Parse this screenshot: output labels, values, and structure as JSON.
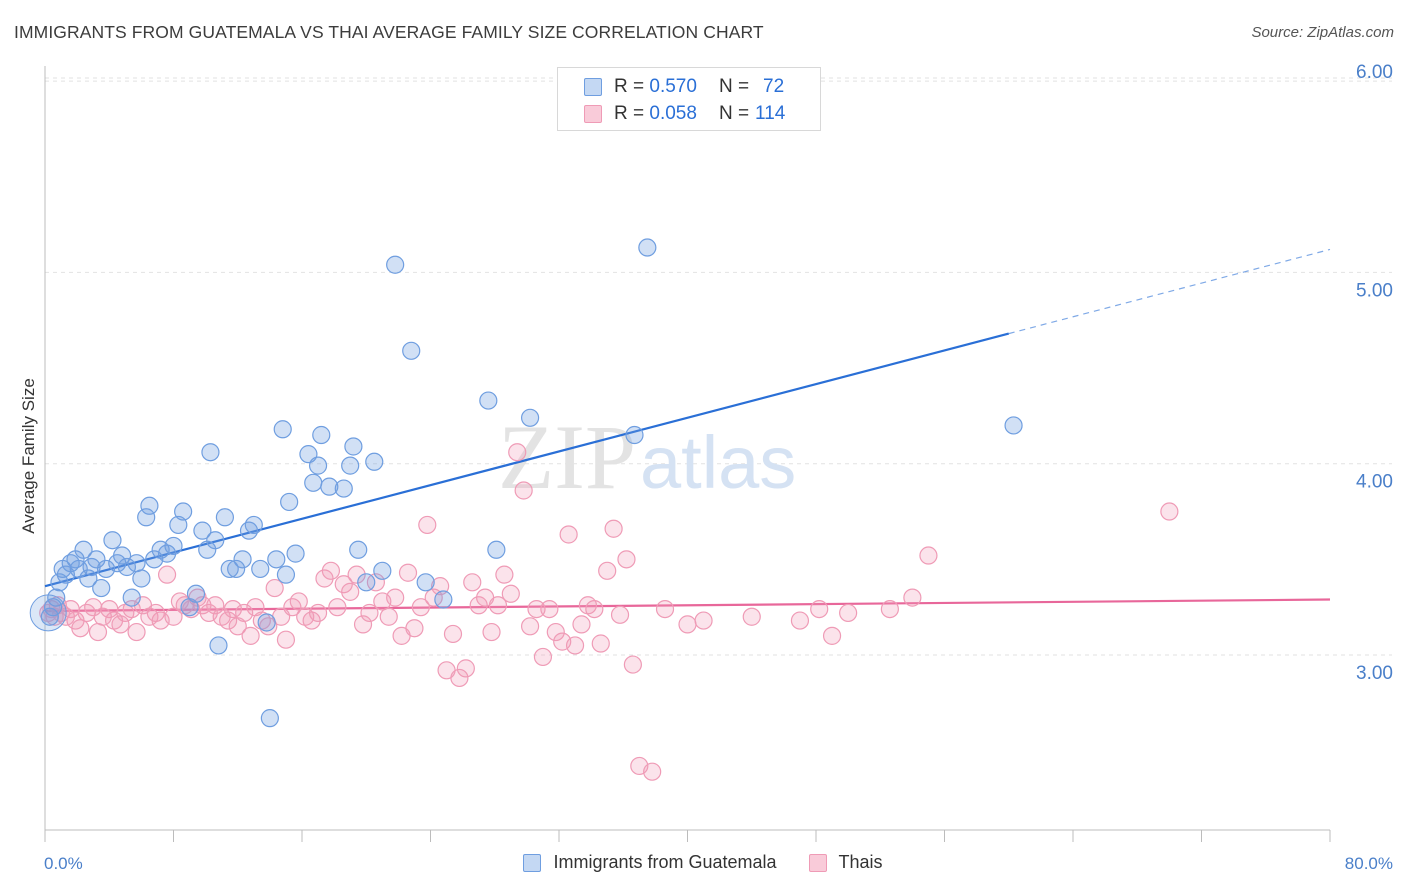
{
  "title": "IMMIGRANTS FROM GUATEMALA VS THAI AVERAGE FAMILY SIZE CORRELATION CHART",
  "source": "Source: ZipAtlas.com",
  "watermark": {
    "zip": "ZIP",
    "atlas": "atlas"
  },
  "legend": {
    "rows": [
      {
        "r_label": "R =",
        "r_value": "0.570",
        "n_label": "N =",
        "n_value": "72"
      },
      {
        "r_label": "R =",
        "r_value": "0.058",
        "n_label": "N =",
        "n_value": "114"
      }
    ]
  },
  "bottom_legend": [
    "Immigrants from Guatemala",
    "Thais"
  ],
  "chart_data": {
    "type": "scatter",
    "title": "IMMIGRANTS FROM GUATEMALA VS THAI AVERAGE FAMILY SIZE CORRELATION CHART",
    "xlabel": "",
    "ylabel": "Average Family Size",
    "xlim": [
      0,
      80
    ],
    "ylim": [
      2.1,
      6.1
    ],
    "x_tick_labels": [
      "0.0%",
      "80.0%"
    ],
    "y_ticks": [
      3.0,
      4.0,
      5.0,
      6.0
    ],
    "y_tick_labels": [
      "3.00",
      "4.00",
      "5.00",
      "6.00"
    ],
    "grid": "horizontal dashed",
    "legend_position": "top-center",
    "colors": {
      "guatemala": "#6f9ee0",
      "thais": "#ef9bb6",
      "guatemala_line": "#2a6fd6",
      "thais_line": "#e8679a"
    },
    "series": [
      {
        "name": "Immigrants from Guatemala",
        "R": 0.57,
        "N": 72,
        "trend": {
          "x0": 0,
          "y0": 3.36,
          "x1": 60,
          "y1": 4.68,
          "dashed_to": [
            80,
            5.12
          ]
        },
        "points": [
          [
            0.3,
            3.2
          ],
          [
            0.5,
            3.25
          ],
          [
            0.7,
            3.3
          ],
          [
            0.9,
            3.38
          ],
          [
            1.1,
            3.45
          ],
          [
            1.3,
            3.42
          ],
          [
            1.6,
            3.48
          ],
          [
            1.9,
            3.5
          ],
          [
            2.1,
            3.45
          ],
          [
            2.4,
            3.55
          ],
          [
            2.7,
            3.4
          ],
          [
            2.9,
            3.46
          ],
          [
            3.2,
            3.5
          ],
          [
            3.5,
            3.35
          ],
          [
            3.8,
            3.45
          ],
          [
            4.2,
            3.6
          ],
          [
            4.5,
            3.48
          ],
          [
            4.8,
            3.52
          ],
          [
            5.1,
            3.46
          ],
          [
            5.4,
            3.3
          ],
          [
            5.7,
            3.48
          ],
          [
            6.0,
            3.4
          ],
          [
            6.3,
            3.72
          ],
          [
            6.5,
            3.78
          ],
          [
            6.8,
            3.5
          ],
          [
            7.2,
            3.55
          ],
          [
            7.6,
            3.53
          ],
          [
            8.0,
            3.57
          ],
          [
            8.3,
            3.68
          ],
          [
            8.6,
            3.75
          ],
          [
            9.0,
            3.25
          ],
          [
            9.4,
            3.32
          ],
          [
            9.8,
            3.65
          ],
          [
            10.1,
            3.55
          ],
          [
            10.3,
            4.06
          ],
          [
            10.6,
            3.6
          ],
          [
            10.8,
            3.05
          ],
          [
            11.2,
            3.72
          ],
          [
            11.5,
            3.45
          ],
          [
            11.9,
            3.45
          ],
          [
            12.3,
            3.5
          ],
          [
            12.7,
            3.65
          ],
          [
            13.0,
            3.68
          ],
          [
            13.4,
            3.45
          ],
          [
            13.8,
            3.17
          ],
          [
            14.0,
            2.67
          ],
          [
            14.4,
            3.5
          ],
          [
            14.8,
            4.18
          ],
          [
            15.0,
            3.42
          ],
          [
            15.2,
            3.8
          ],
          [
            15.6,
            3.53
          ],
          [
            16.4,
            4.05
          ],
          [
            16.7,
            3.9
          ],
          [
            17.0,
            3.99
          ],
          [
            17.2,
            4.15
          ],
          [
            17.7,
            3.88
          ],
          [
            18.6,
            3.87
          ],
          [
            19.0,
            3.99
          ],
          [
            19.2,
            4.09
          ],
          [
            19.5,
            3.55
          ],
          [
            20.0,
            3.38
          ],
          [
            20.5,
            4.01
          ],
          [
            21.0,
            3.44
          ],
          [
            21.8,
            5.04
          ],
          [
            22.8,
            4.59
          ],
          [
            23.7,
            3.38
          ],
          [
            24.8,
            3.29
          ],
          [
            27.6,
            4.33
          ],
          [
            28.1,
            3.55
          ],
          [
            30.2,
            4.24
          ],
          [
            36.7,
            4.15
          ],
          [
            37.5,
            5.13
          ],
          [
            60.3,
            4.2
          ]
        ]
      },
      {
        "name": "Thais",
        "R": 0.058,
        "N": 114,
        "trend": {
          "x0": 0,
          "y0": 3.23,
          "x1": 80,
          "y1": 3.29
        },
        "points": [
          [
            0.2,
            3.22
          ],
          [
            0.4,
            3.24
          ],
          [
            0.6,
            3.2
          ],
          [
            0.8,
            3.26
          ],
          [
            1.0,
            3.22
          ],
          [
            1.3,
            3.2
          ],
          [
            1.6,
            3.24
          ],
          [
            1.9,
            3.18
          ],
          [
            2.2,
            3.14
          ],
          [
            2.6,
            3.22
          ],
          [
            3.0,
            3.25
          ],
          [
            3.3,
            3.12
          ],
          [
            3.6,
            3.2
          ],
          [
            4.0,
            3.24
          ],
          [
            4.3,
            3.18
          ],
          [
            4.7,
            3.16
          ],
          [
            5.0,
            3.22
          ],
          [
            5.4,
            3.24
          ],
          [
            5.7,
            3.12
          ],
          [
            6.1,
            3.26
          ],
          [
            6.5,
            3.2
          ],
          [
            6.9,
            3.22
          ],
          [
            7.2,
            3.18
          ],
          [
            7.6,
            3.42
          ],
          [
            8.0,
            3.2
          ],
          [
            8.4,
            3.28
          ],
          [
            8.7,
            3.26
          ],
          [
            9.1,
            3.24
          ],
          [
            9.5,
            3.3
          ],
          [
            9.8,
            3.26
          ],
          [
            10.2,
            3.22
          ],
          [
            10.6,
            3.26
          ],
          [
            11.0,
            3.2
          ],
          [
            11.4,
            3.18
          ],
          [
            11.7,
            3.24
          ],
          [
            12.0,
            3.15
          ],
          [
            12.4,
            3.22
          ],
          [
            12.8,
            3.1
          ],
          [
            13.1,
            3.25
          ],
          [
            13.5,
            3.18
          ],
          [
            13.9,
            3.15
          ],
          [
            14.3,
            3.35
          ],
          [
            14.7,
            3.2
          ],
          [
            15.0,
            3.08
          ],
          [
            15.4,
            3.25
          ],
          [
            15.8,
            3.28
          ],
          [
            16.2,
            3.2
          ],
          [
            16.6,
            3.18
          ],
          [
            17.0,
            3.22
          ],
          [
            17.4,
            3.4
          ],
          [
            17.8,
            3.44
          ],
          [
            18.2,
            3.25
          ],
          [
            18.6,
            3.37
          ],
          [
            19.0,
            3.33
          ],
          [
            19.4,
            3.42
          ],
          [
            19.8,
            3.16
          ],
          [
            20.2,
            3.22
          ],
          [
            20.6,
            3.38
          ],
          [
            21.0,
            3.28
          ],
          [
            21.4,
            3.2
          ],
          [
            21.8,
            3.3
          ],
          [
            22.2,
            3.1
          ],
          [
            22.6,
            3.43
          ],
          [
            23.0,
            3.14
          ],
          [
            23.4,
            3.25
          ],
          [
            23.8,
            3.68
          ],
          [
            24.2,
            3.3
          ],
          [
            24.6,
            3.36
          ],
          [
            25.0,
            2.92
          ],
          [
            25.4,
            3.11
          ],
          [
            25.8,
            2.88
          ],
          [
            26.2,
            2.93
          ],
          [
            26.6,
            3.38
          ],
          [
            27.0,
            3.26
          ],
          [
            27.4,
            3.3
          ],
          [
            27.8,
            3.12
          ],
          [
            28.2,
            3.26
          ],
          [
            28.6,
            3.42
          ],
          [
            29.0,
            3.32
          ],
          [
            29.4,
            4.06
          ],
          [
            29.8,
            3.86
          ],
          [
            30.2,
            3.15
          ],
          [
            30.6,
            3.24
          ],
          [
            31.0,
            2.99
          ],
          [
            31.4,
            3.24
          ],
          [
            31.8,
            3.12
          ],
          [
            32.2,
            3.07
          ],
          [
            32.6,
            3.63
          ],
          [
            33.0,
            3.05
          ],
          [
            33.4,
            3.16
          ],
          [
            33.8,
            3.26
          ],
          [
            34.2,
            3.24
          ],
          [
            34.6,
            3.06
          ],
          [
            35.0,
            3.44
          ],
          [
            35.4,
            3.66
          ],
          [
            35.8,
            3.21
          ],
          [
            36.2,
            3.5
          ],
          [
            36.6,
            2.95
          ],
          [
            37.0,
            2.42
          ],
          [
            37.8,
            2.39
          ],
          [
            38.6,
            3.24
          ],
          [
            40.0,
            3.16
          ],
          [
            41.0,
            3.18
          ],
          [
            44.0,
            3.2
          ],
          [
            47.0,
            3.18
          ],
          [
            48.2,
            3.24
          ],
          [
            49.0,
            3.1
          ],
          [
            50.0,
            3.22
          ],
          [
            52.6,
            3.24
          ],
          [
            54.0,
            3.3
          ],
          [
            55.0,
            3.52
          ],
          [
            70.0,
            3.75
          ]
        ]
      }
    ]
  }
}
